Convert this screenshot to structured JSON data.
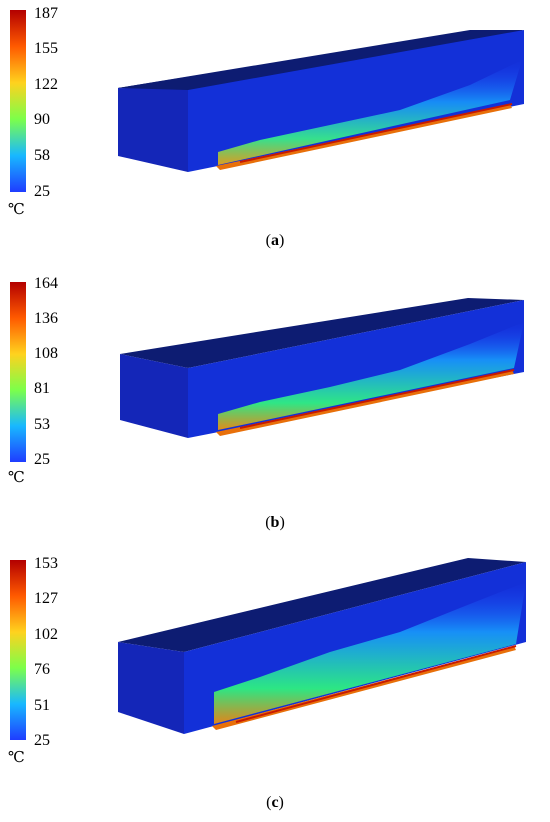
{
  "figures": [
    {
      "caption_label": "a",
      "unit": "℃",
      "colorbar_ticks": [
        "187",
        "155",
        "122",
        "90",
        "58",
        "25"
      ],
      "colorbar_colors": [
        "#b30000",
        "#ff5a00",
        "#ffd21e",
        "#7cff4a",
        "#18b8ff",
        "#1f3cff"
      ]
    },
    {
      "caption_label": "b",
      "unit": "℃",
      "colorbar_ticks": [
        "164",
        "136",
        "108",
        "81",
        "53",
        "25"
      ],
      "colorbar_colors": [
        "#b30000",
        "#ff5a00",
        "#ffd21e",
        "#7cff4a",
        "#18b8ff",
        "#1f3cff"
      ]
    },
    {
      "caption_label": "c",
      "unit": "℃",
      "colorbar_ticks": [
        "153",
        "127",
        "102",
        "76",
        "51",
        "25"
      ],
      "colorbar_colors": [
        "#b30000",
        "#ff5a00",
        "#ffd21e",
        "#7cff4a",
        "#18b8ff",
        "#1f3cff"
      ]
    }
  ]
}
